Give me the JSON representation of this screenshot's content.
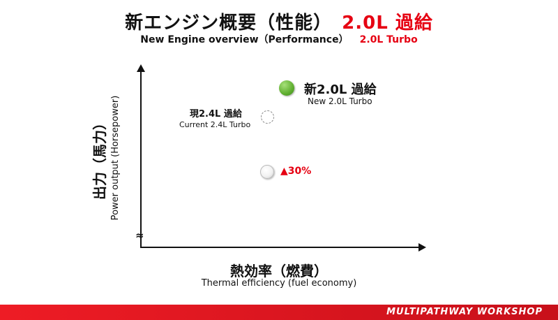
{
  "header": {
    "title_jp": "新エンジン概要（性能）",
    "title_accent": "2.0L 過給",
    "subtitle_en": "New Engine overview（Performance）",
    "subtitle_accent": "2.0L Turbo"
  },
  "axes": {
    "y_label_jp": "出力（馬力）",
    "y_label_en": "Power output (Horsepower)",
    "x_label_jp": "熱効率（燃費）",
    "x_label_en": "Thermal efficiency (fuel economy)",
    "axis_break": "≈"
  },
  "points": {
    "new": {
      "label_jp": "新2.0L 過給",
      "label_en": "New 2.0L Turbo",
      "color": "#5fae2f"
    },
    "current": {
      "label_jp": "現2.4L 過給",
      "label_en": "Current 2.4L Turbo"
    },
    "baseline": {
      "annotation": "▲30%",
      "annotation_color": "#e60012"
    }
  },
  "footer": {
    "brand": "MULTIPATHWAY WORKSHOP",
    "color": "#e60012"
  }
}
